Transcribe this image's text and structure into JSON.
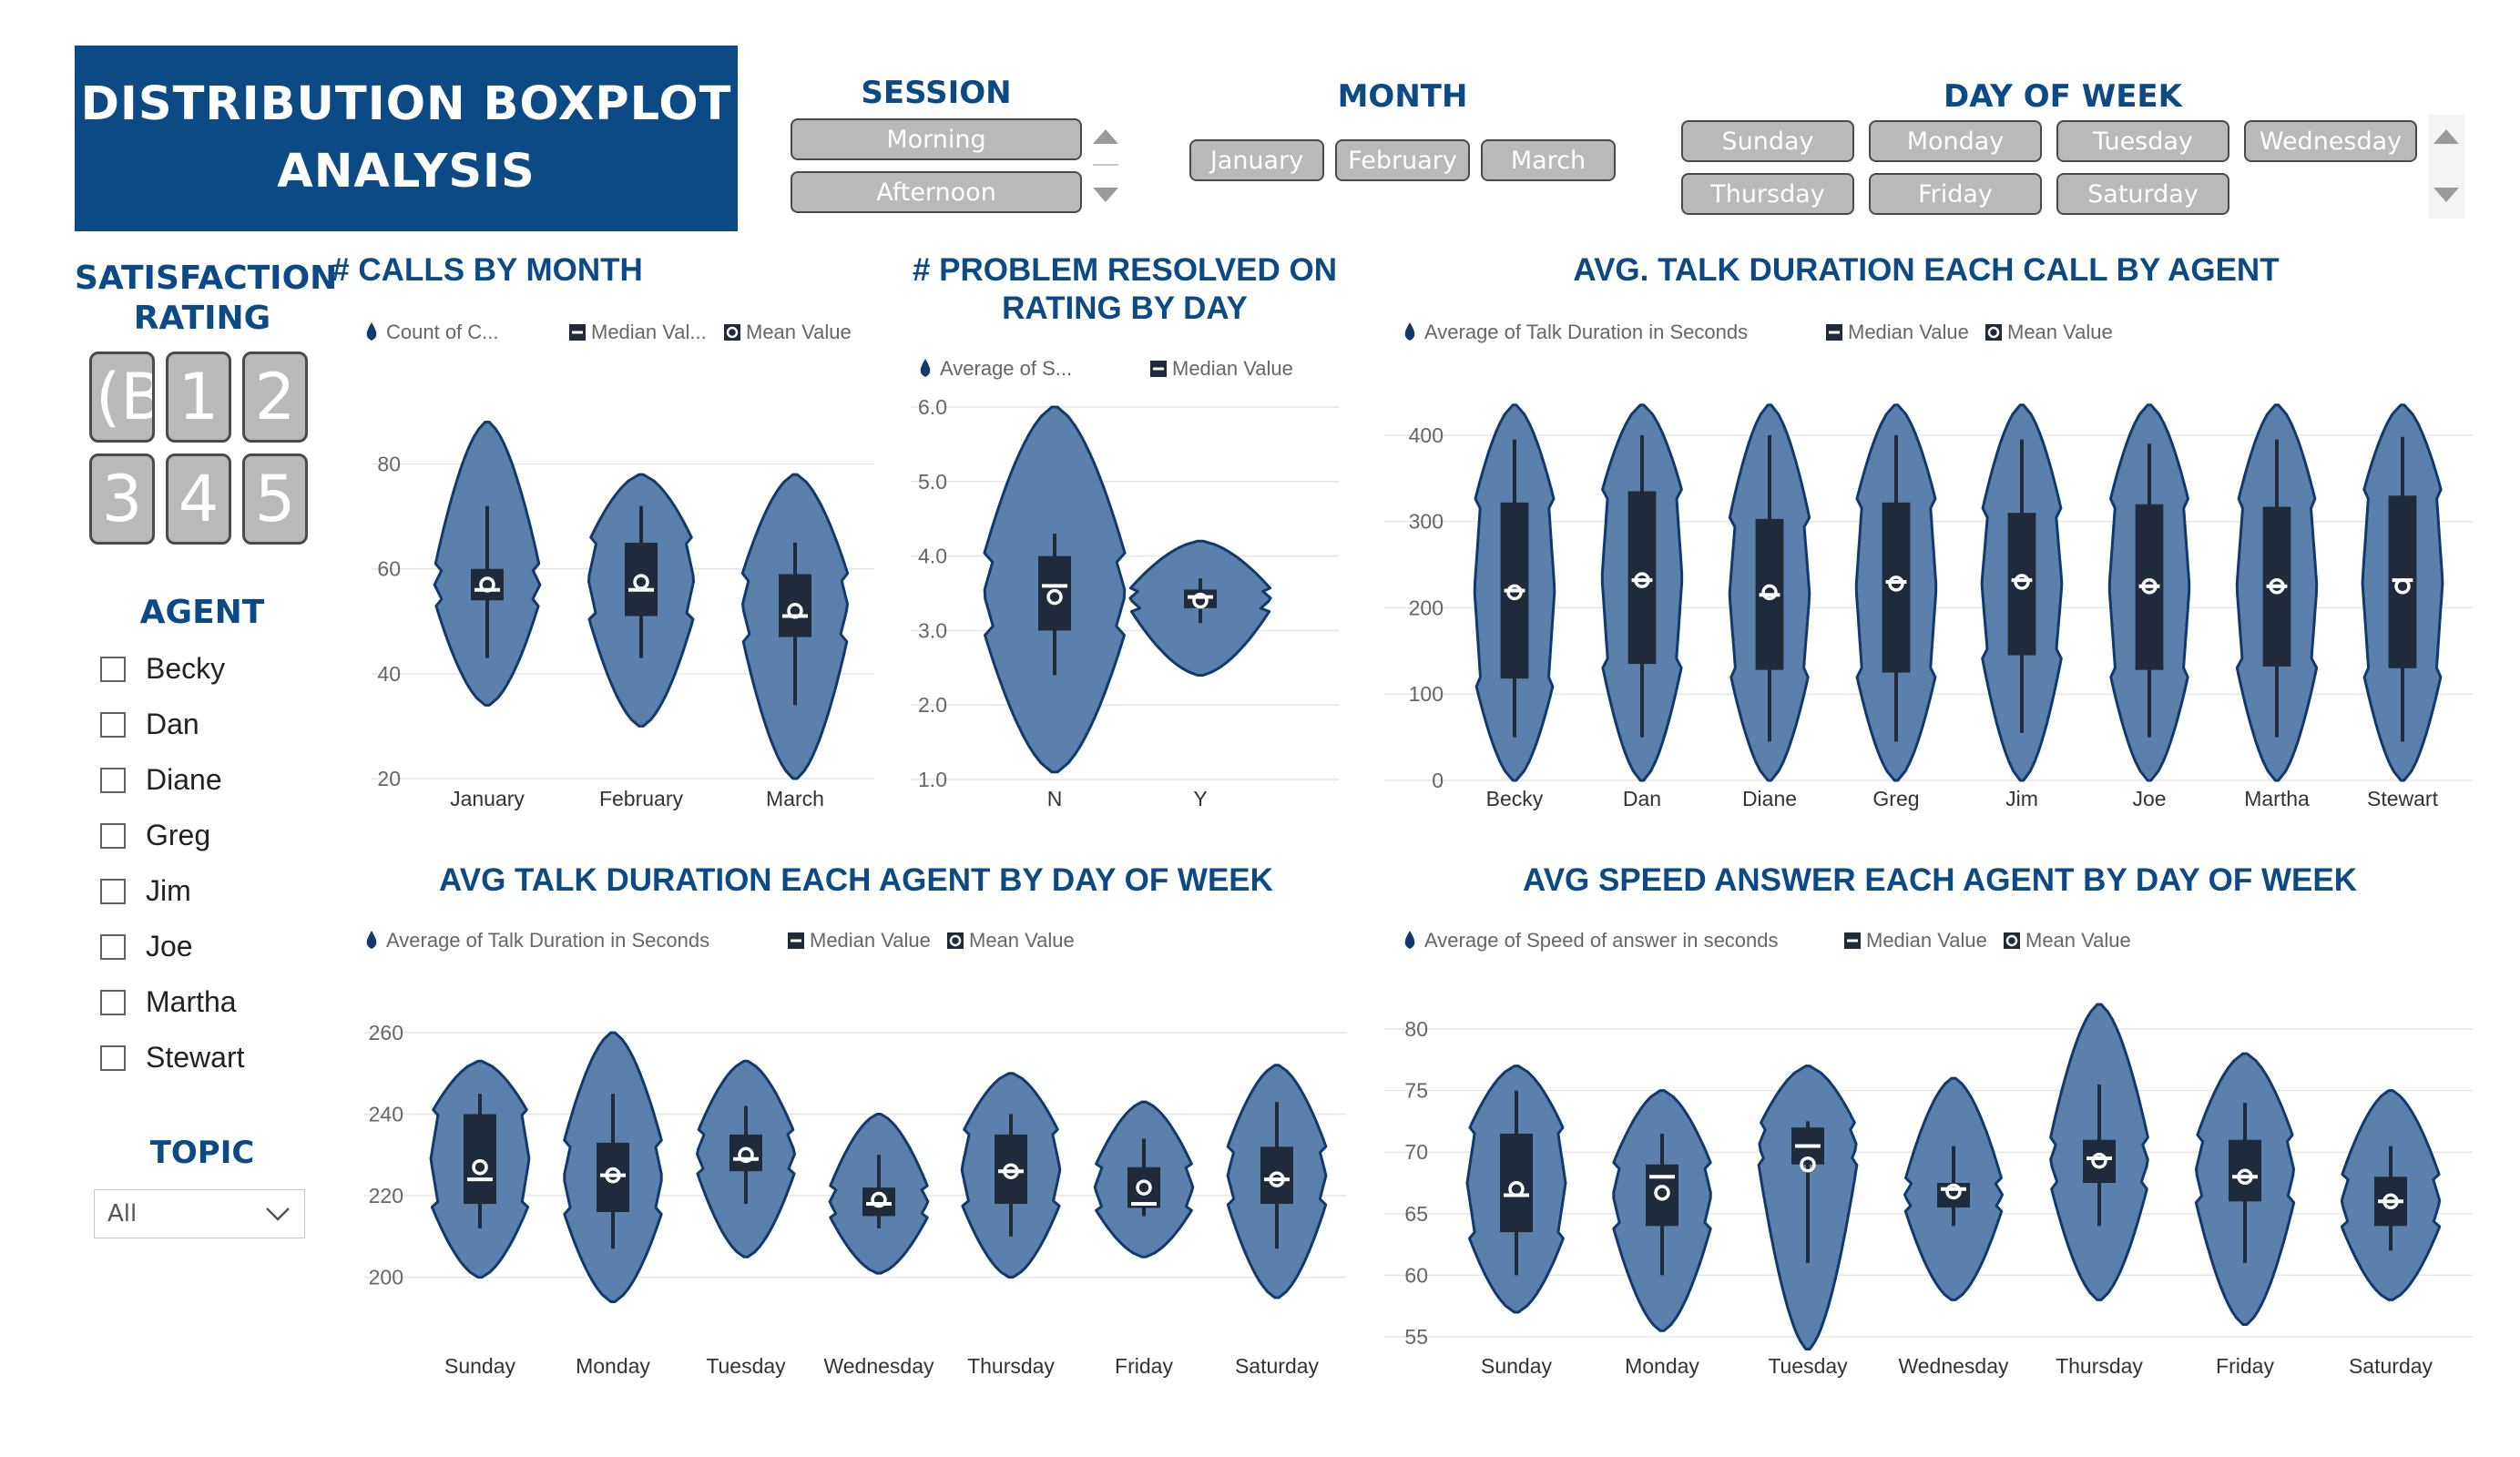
{
  "header": {
    "title_line1": "DISTRIBUTION BOXPLOT",
    "title_line2": "ANALYSIS"
  },
  "session": {
    "label": "SESSION",
    "options": [
      "Morning",
      "Afternoon"
    ]
  },
  "month": {
    "label": "MONTH",
    "options": [
      "January",
      "February",
      "March"
    ]
  },
  "day_of_week": {
    "label": "DAY OF WEEK",
    "options": [
      "Sunday",
      "Monday",
      "Tuesday",
      "Wednesday",
      "Thursday",
      "Friday",
      "Saturday"
    ]
  },
  "satisfaction": {
    "label_line1": "SATISFACTION",
    "label_line2": "RATING",
    "options": [
      "(B",
      "1",
      "2",
      "3",
      "4",
      "5"
    ]
  },
  "agent": {
    "label": "AGENT",
    "options": [
      "Becky",
      "Dan",
      "Diane",
      "Greg",
      "Jim",
      "Joe",
      "Martha",
      "Stewart"
    ]
  },
  "topic": {
    "label": "TOPIC",
    "value": "All"
  },
  "colors": {
    "violin_fill": "#5b80ab",
    "violin_stroke": "#12396b",
    "box": "#1f2b3a",
    "title_blue": "#0c4a86"
  },
  "chart_data": [
    {
      "id": "calls_by_month",
      "type": "violin",
      "title": "# CALLS BY MONTH",
      "legend": [
        "Count of C...",
        "Median Val...",
        "Mean Value"
      ],
      "categories": [
        "January",
        "February",
        "March"
      ],
      "ylim": [
        20,
        90
      ],
      "yticks": [
        20,
        40,
        60,
        80
      ],
      "stats": [
        {
          "q1": 54,
          "median": 56,
          "q3": 60,
          "mean": 57,
          "low": 43,
          "high": 72,
          "min": 34,
          "max": 88
        },
        {
          "q1": 51,
          "median": 56,
          "q3": 65,
          "mean": 57.5,
          "low": 43,
          "high": 72,
          "min": 30,
          "max": 78
        },
        {
          "q1": 47,
          "median": 51,
          "q3": 59,
          "mean": 52,
          "low": 34,
          "high": 65,
          "min": 20,
          "max": 78
        }
      ]
    },
    {
      "id": "resolved_by_rating",
      "type": "violin",
      "title_line1": "# PROBLEM RESOLVED ON",
      "title_line2": "RATING BY DAY",
      "legend": [
        "Average of S...",
        "Median Value"
      ],
      "categories": [
        "N",
        "Y"
      ],
      "ylim": [
        1.0,
        6.0
      ],
      "yticks": [
        1.0,
        2.0,
        3.0,
        4.0,
        5.0,
        6.0
      ],
      "stats": [
        {
          "q1": 3.0,
          "median": 3.6,
          "q3": 4.0,
          "mean": 3.45,
          "low": 2.4,
          "high": 4.3,
          "min": 1.1,
          "max": 6.0
        },
        {
          "q1": 3.3,
          "median": 3.45,
          "q3": 3.55,
          "mean": 3.4,
          "low": 3.1,
          "high": 3.7,
          "min": 2.4,
          "max": 4.2
        }
      ]
    },
    {
      "id": "talk_by_agent",
      "type": "violin",
      "title": "AVG. TALK DURATION EACH CALL BY AGENT",
      "legend": [
        "Average of Talk Duration in Seconds",
        "Median Value",
        "Mean Value"
      ],
      "categories": [
        "Becky",
        "Dan",
        "Diane",
        "Greg",
        "Jim",
        "Joe",
        "Martha",
        "Stewart"
      ],
      "ylim": [
        0,
        440
      ],
      "yticks": [
        0,
        100,
        200,
        300,
        400
      ],
      "stats": [
        {
          "q1": 118,
          "median": 220,
          "q3": 322,
          "mean": 218,
          "low": 50,
          "high": 395,
          "min": 0,
          "max": 435
        },
        {
          "q1": 135,
          "median": 232,
          "q3": 335,
          "mean": 232,
          "low": 50,
          "high": 400,
          "min": 0,
          "max": 435
        },
        {
          "q1": 128,
          "median": 215,
          "q3": 303,
          "mean": 218,
          "low": 45,
          "high": 400,
          "min": 0,
          "max": 435
        },
        {
          "q1": 125,
          "median": 230,
          "q3": 322,
          "mean": 228,
          "low": 45,
          "high": 400,
          "min": 0,
          "max": 435
        },
        {
          "q1": 145,
          "median": 232,
          "q3": 310,
          "mean": 230,
          "low": 55,
          "high": 395,
          "min": 0,
          "max": 435
        },
        {
          "q1": 128,
          "median": 225,
          "q3": 320,
          "mean": 225,
          "low": 50,
          "high": 390,
          "min": 0,
          "max": 435
        },
        {
          "q1": 132,
          "median": 225,
          "q3": 317,
          "mean": 225,
          "low": 50,
          "high": 395,
          "min": 0,
          "max": 435
        },
        {
          "q1": 130,
          "median": 232,
          "q3": 330,
          "mean": 225,
          "low": 45,
          "high": 398,
          "min": 0,
          "max": 435
        }
      ]
    },
    {
      "id": "talk_by_day",
      "type": "violin",
      "title": "AVG TALK DURATION EACH AGENT BY DAY OF WEEK",
      "legend": [
        "Average of Talk Duration in Seconds",
        "Median Value",
        "Mean Value"
      ],
      "categories": [
        "Sunday",
        "Monday",
        "Tuesday",
        "Wednesday",
        "Thursday",
        "Friday",
        "Saturday"
      ],
      "ylim": [
        195,
        262
      ],
      "yticks": [
        200,
        220,
        240,
        260
      ],
      "stats": [
        {
          "q1": 218,
          "median": 224,
          "q3": 240,
          "mean": 227,
          "low": 212,
          "high": 245,
          "min": 200,
          "max": 253
        },
        {
          "q1": 216,
          "median": 225,
          "q3": 233,
          "mean": 225,
          "low": 207,
          "high": 245,
          "min": 194,
          "max": 260
        },
        {
          "q1": 226,
          "median": 229,
          "q3": 235,
          "mean": 230,
          "low": 218,
          "high": 242,
          "min": 205,
          "max": 253
        },
        {
          "q1": 215,
          "median": 218,
          "q3": 222,
          "mean": 219,
          "low": 212,
          "high": 230,
          "min": 201,
          "max": 240
        },
        {
          "q1": 218,
          "median": 226,
          "q3": 235,
          "mean": 226,
          "low": 210,
          "high": 240,
          "min": 200,
          "max": 250
        },
        {
          "q1": 217,
          "median": 218,
          "q3": 227,
          "mean": 222,
          "low": 215,
          "high": 234,
          "min": 205,
          "max": 243
        },
        {
          "q1": 218,
          "median": 224,
          "q3": 232,
          "mean": 224,
          "low": 207,
          "high": 243,
          "min": 195,
          "max": 252
        }
      ]
    },
    {
      "id": "speed_by_day",
      "type": "violin",
      "title": "AVG SPEED ANSWER EACH AGENT BY DAY OF WEEK",
      "legend": [
        "Average of Speed of answer in seconds",
        "Median Value",
        "Mean Value"
      ],
      "categories": [
        "Sunday",
        "Monday",
        "Tuesday",
        "Wednesday",
        "Thursday",
        "Friday",
        "Saturday"
      ],
      "ylim": [
        55,
        82
      ],
      "yticks": [
        55,
        60,
        65,
        70,
        75,
        80
      ],
      "stats": [
        {
          "q1": 63.5,
          "median": 66.5,
          "q3": 71.5,
          "mean": 67,
          "low": 60,
          "high": 75,
          "min": 57,
          "max": 77
        },
        {
          "q1": 64,
          "median": 68,
          "q3": 69,
          "mean": 66.7,
          "low": 60,
          "high": 71.5,
          "min": 55.5,
          "max": 75
        },
        {
          "q1": 69,
          "median": 70.5,
          "q3": 72,
          "mean": 69,
          "low": 61,
          "high": 72.5,
          "min": 54,
          "max": 77
        },
        {
          "q1": 65.5,
          "median": 67,
          "q3": 67.5,
          "mean": 66.8,
          "low": 64,
          "high": 70.5,
          "min": 58,
          "max": 76
        },
        {
          "q1": 67.5,
          "median": 69.5,
          "q3": 71,
          "mean": 69.3,
          "low": 64,
          "high": 75.5,
          "min": 58,
          "max": 82
        },
        {
          "q1": 66,
          "median": 68,
          "q3": 71,
          "mean": 68,
          "low": 61,
          "high": 74,
          "min": 56,
          "max": 78
        },
        {
          "q1": 64,
          "median": 66,
          "q3": 68,
          "mean": 66,
          "low": 62,
          "high": 70.5,
          "min": 58,
          "max": 75
        }
      ]
    }
  ]
}
